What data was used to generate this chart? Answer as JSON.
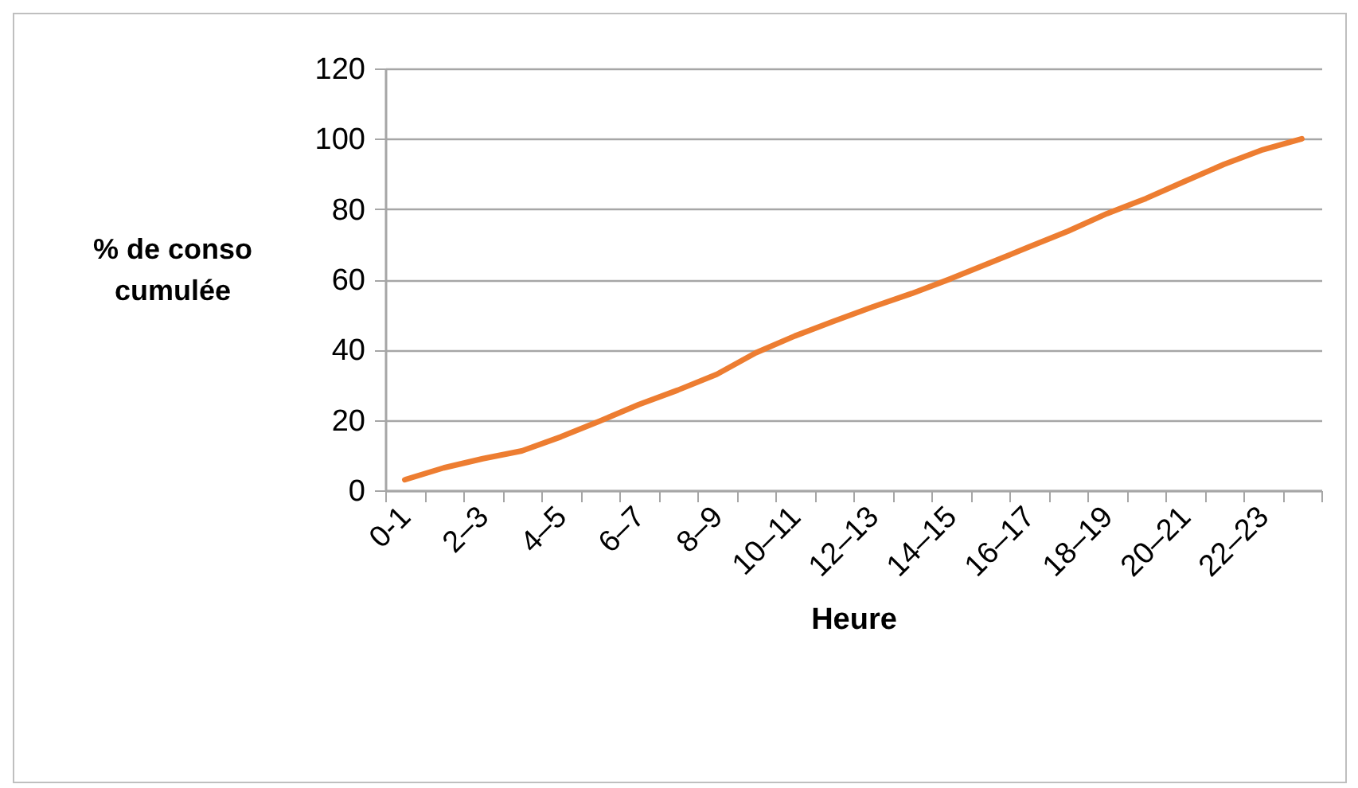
{
  "chart_data": {
    "type": "line",
    "xlabel": "Heure",
    "ylabel": "% de conso\ncumulée",
    "categories": [
      "0-1",
      null,
      "2–3",
      null,
      "4–5",
      null,
      "6–7",
      null,
      "8–9",
      null,
      "10–11",
      null,
      "12–13",
      null,
      "14–15",
      null,
      "16–17",
      null,
      "18–19",
      null,
      "20–21",
      null,
      "22–23",
      null
    ],
    "series": [
      {
        "color": "#ed7d31",
        "values": [
          3,
          6.4,
          9,
          11.2,
          15.2,
          19.7,
          24.4,
          28.5,
          33,
          39.1,
          43.9,
          48.1,
          52.2,
          56,
          60.2,
          64.7,
          69.2,
          73.7,
          78.7,
          83,
          87.9,
          92.7,
          96.9,
          100
        ]
      }
    ],
    "ylim": [
      0,
      120
    ],
    "yticks": [
      0,
      20,
      40,
      60,
      80,
      100,
      120
    ],
    "grid": "y",
    "marker": "none",
    "line_style": "solid"
  }
}
